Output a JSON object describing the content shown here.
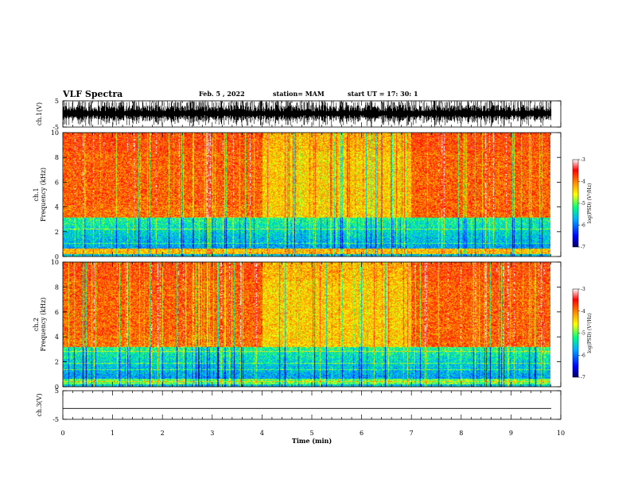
{
  "header": {
    "title": "VLF Spectra",
    "date": "Feb. 5 , 2022",
    "station": "station= MAM",
    "start_ut": "start UT =   17: 30: 1"
  },
  "chart_data": [
    {
      "type": "line",
      "name": "waveform-ch1",
      "ylabel": "ch.1(V)",
      "ylim": [
        -5,
        5
      ],
      "yticks": [
        "5",
        "-5"
      ],
      "xlim": [
        0,
        10
      ],
      "description_values": {
        "amplitude_range_V": [
          -5,
          5
        ],
        "dense_burst_waveform": true
      }
    },
    {
      "type": "heatmap",
      "name": "spectrogram-ch1",
      "ylabel": "ch.1 Frequency (kHz)",
      "ylim": [
        0,
        10
      ],
      "yticks": [
        "0",
        "2",
        "4",
        "6",
        "8",
        "10"
      ],
      "xlim": [
        0,
        9.8
      ],
      "colorbar": {
        "label": "log(PSD) (V²/Hz)",
        "range": [
          -7,
          -3
        ],
        "ticks": [
          "-3",
          "-4",
          "-5",
          "-6",
          "-7"
        ]
      }
    },
    {
      "type": "heatmap",
      "name": "spectrogram-ch2",
      "ylabel": "ch.2 Frequency (kHz)",
      "ylim": [
        0,
        10
      ],
      "yticks": [
        "0",
        "2",
        "4",
        "6",
        "8",
        "10"
      ],
      "xlim": [
        0,
        9.8
      ],
      "colorbar": {
        "label": "log(PSD) (V²/Hz)",
        "range": [
          -7,
          -3
        ],
        "ticks": [
          "-3",
          "-4",
          "-5",
          "-6",
          "-7"
        ]
      }
    },
    {
      "type": "line",
      "name": "waveform-ch3",
      "ylabel": "ch.3(V)",
      "ylim": [
        -5,
        5
      ],
      "yticks": [
        "5",
        "-5"
      ],
      "xlim": [
        0,
        10
      ],
      "values_constant": -1.2
    }
  ],
  "xaxis": {
    "label": "Time (min)",
    "ticks": [
      "0",
      "1",
      "2",
      "3",
      "4",
      "5",
      "6",
      "7",
      "8",
      "9",
      "10"
    ],
    "range": [
      0,
      10
    ]
  },
  "colors": {
    "colormap": [
      "#000080",
      "#0000ff",
      "#00c8ff",
      "#00ff80",
      "#ffff00",
      "#ff8000",
      "#ff0000",
      "#ffffff"
    ]
  }
}
